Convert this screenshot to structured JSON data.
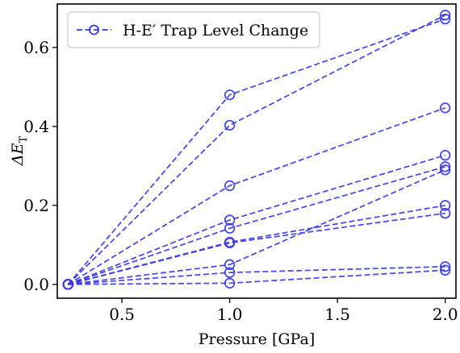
{
  "chart_data": {
    "type": "line",
    "xlabel": "Pressure [GPa]",
    "ylabel_main": "ΔE",
    "ylabel_sub": "T",
    "xlim": [
      0.2,
      2.05
    ],
    "ylim": [
      -0.035,
      0.71
    ],
    "x_ticks": [
      0.5,
      1.0,
      1.5,
      2.0
    ],
    "x_tick_labels": [
      "0.5",
      "1.0",
      "1.5",
      "2.0"
    ],
    "y_ticks": [
      0.0,
      0.2,
      0.4,
      0.6
    ],
    "y_tick_labels": [
      "0.0",
      "0.2",
      "0.4",
      "0.6"
    ],
    "grid": false,
    "legend": {
      "position": "top-left",
      "label": "H-E′ Trap Level Change"
    },
    "color": "#3a3ae6",
    "x": [
      0.25,
      1.0,
      2.0
    ],
    "series": [
      {
        "values": [
          0.0,
          0.48,
          0.672
        ]
      },
      {
        "values": [
          0.0,
          0.403,
          0.682
        ]
      },
      {
        "values": [
          0.0,
          0.25,
          0.447
        ]
      },
      {
        "values": [
          0.0,
          0.163,
          0.327
        ]
      },
      {
        "values": [
          0.0,
          0.142,
          0.298
        ]
      },
      {
        "values": [
          0.0,
          0.107,
          0.2
        ]
      },
      {
        "values": [
          0.0,
          0.105,
          0.18
        ]
      },
      {
        "values": [
          0.0,
          0.05,
          0.29
        ]
      },
      {
        "values": [
          0.0,
          0.03,
          0.045
        ]
      },
      {
        "values": [
          0.0,
          0.003,
          0.036
        ]
      }
    ]
  }
}
